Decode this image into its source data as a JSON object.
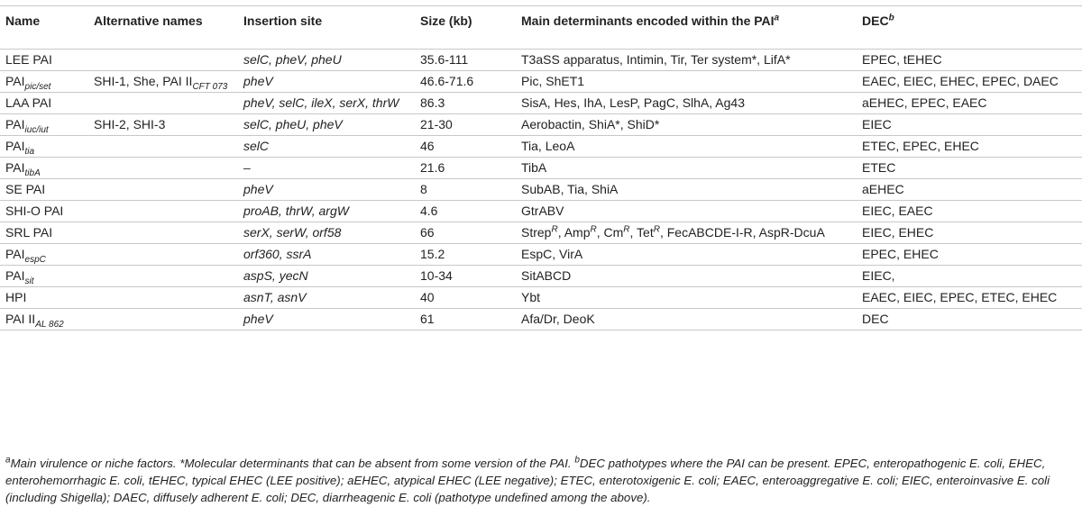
{
  "headers": {
    "name": "Name",
    "alt": "Alternative names",
    "site": "Insertion site",
    "size": "Size (kb)",
    "determinants": "Main determinants encoded within the PAI",
    "determinants_sup": "a",
    "dec": "DEC",
    "dec_sup": "b"
  },
  "rows": [
    {
      "name": "LEE PAI",
      "alt": "",
      "site": "selC, pheV, pheU",
      "size": "35.6-111",
      "determinants": "T3aSS apparatus, Intimin, Tir, Ter system*, LifA*",
      "dec": "EPEC, tEHEC"
    },
    {
      "name": "PAI",
      "name_sub": "pic/set",
      "alt": "SHI-1, She, PAI II",
      "alt_sub": "CFT 073",
      "site": "pheV",
      "size": "46.6-71.6",
      "determinants": "Pic, ShET1",
      "dec": "EAEC, EIEC, EHEC, EPEC, DAEC"
    },
    {
      "name": "LAA PAI",
      "alt": "",
      "site": "pheV, selC, ileX, serX, thrW",
      "size": "86.3",
      "determinants": "SisA, Hes, IhA, LesP, PagC, SlhA, Ag43",
      "dec": "aEHEC, EPEC, EAEC"
    },
    {
      "name": "PAI",
      "name_sub": "iuc/iut",
      "alt": "SHI-2, SHI-3",
      "site": "selC, pheU, pheV",
      "size": "21-30",
      "determinants": "Aerobactin, ShiA*, ShiD*",
      "dec": "EIEC"
    },
    {
      "name": "PAI",
      "name_sub": "tia",
      "alt": "",
      "site": "selC",
      "size": "46",
      "determinants": "Tia, LeoA",
      "dec": "ETEC, EPEC, EHEC"
    },
    {
      "name": "PAI",
      "name_sub": "tibA",
      "alt": "",
      "site": "–",
      "size": "21.6",
      "determinants": "TibA",
      "dec": "ETEC"
    },
    {
      "name": "SE PAI",
      "alt": "",
      "site": "pheV",
      "size": "8",
      "determinants": "SubAB, Tia, ShiA",
      "dec": "aEHEC"
    },
    {
      "name": "SHI-O PAI",
      "alt": "",
      "site": "proAB, thrW, argW",
      "size": "4.6",
      "determinants": "GtrABV",
      "dec": "EIEC, EAEC"
    },
    {
      "name": "SRL PAI",
      "alt": "",
      "site": "serX, serW, orf58",
      "size": "66",
      "det_parts": [
        "Strep",
        "R",
        ", Amp",
        "R",
        ", Cm",
        "R",
        ", Tet",
        "R",
        ", FecABCDE-I-R, AspR-DcuA"
      ],
      "dec": "EIEC, EHEC"
    },
    {
      "name": "PAI",
      "name_sub": "espC",
      "alt": "",
      "site": "orf360, ssrA",
      "size": "15.2",
      "determinants": "EspC, VirA",
      "dec": "EPEC, EHEC"
    },
    {
      "name": "PAI",
      "name_sub": "sit",
      "alt": "",
      "site": "aspS, yecN",
      "size": "10-34",
      "determinants": "SitABCD",
      "dec": "EIEC,"
    },
    {
      "name": "HPI",
      "alt": "",
      "site": "asnT, asnV",
      "size": "40",
      "determinants": "Ybt",
      "dec": "EAEC, EIEC, EPEC, ETEC, EHEC"
    },
    {
      "name": "PAI II",
      "name_sub": "AL 862",
      "alt": "",
      "site": "pheV",
      "size": "61",
      "determinants": "Afa/Dr, DeoK",
      "dec": "DEC"
    }
  ],
  "footnote": {
    "a_mark": "a",
    "a_text": "Main virulence or niche factors. *Molecular determinants that can be absent from some version of the PAI. ",
    "b_mark": "b",
    "b_text": "DEC pathotypes where the PAI can be present. EPEC, enteropathogenic E. coli, EHEC, enterohemorrhagic E. coli, tEHEC, typical EHEC (LEE positive); aEHEC, atypical EHEC (LEE negative); ETEC, enterotoxigenic E. coli; EAEC, enteroaggregative E. coli; EIEC, enteroinvasive E. coli (including Shigella); DAEC, diffusely adherent E. coli; DEC, diarrheagenic E. coli (pathotype undefined among the above)."
  }
}
